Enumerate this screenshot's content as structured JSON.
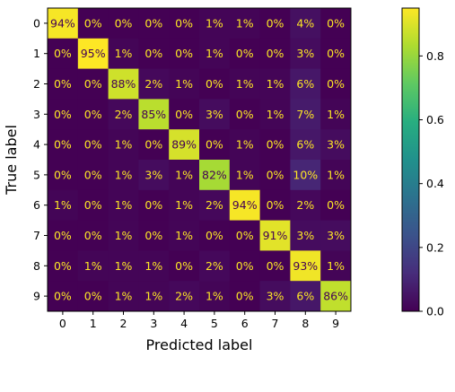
{
  "chart_data": {
    "type": "heatmap",
    "title": "",
    "xlabel": "Predicted label",
    "ylabel": "True label",
    "x_categories": [
      "0",
      "1",
      "2",
      "3",
      "4",
      "5",
      "6",
      "7",
      "8",
      "9"
    ],
    "y_categories": [
      "0",
      "1",
      "2",
      "3",
      "4",
      "5",
      "6",
      "7",
      "8",
      "9"
    ],
    "values": [
      [
        0.94,
        0.0,
        0.0,
        0.0,
        0.0,
        0.01,
        0.01,
        0.0,
        0.04,
        0.0
      ],
      [
        0.0,
        0.95,
        0.01,
        0.0,
        0.0,
        0.01,
        0.0,
        0.0,
        0.03,
        0.0
      ],
      [
        0.0,
        0.0,
        0.88,
        0.02,
        0.01,
        0.0,
        0.01,
        0.01,
        0.06,
        0.0
      ],
      [
        0.0,
        0.0,
        0.02,
        0.85,
        0.0,
        0.03,
        0.0,
        0.01,
        0.07,
        0.01
      ],
      [
        0.0,
        0.0,
        0.01,
        0.0,
        0.89,
        0.0,
        0.01,
        0.0,
        0.06,
        0.03
      ],
      [
        0.0,
        0.0,
        0.01,
        0.03,
        0.01,
        0.82,
        0.01,
        0.0,
        0.1,
        0.01
      ],
      [
        0.01,
        0.0,
        0.01,
        0.0,
        0.01,
        0.02,
        0.94,
        0.0,
        0.02,
        0.0
      ],
      [
        0.0,
        0.0,
        0.01,
        0.0,
        0.01,
        0.0,
        0.0,
        0.91,
        0.03,
        0.03
      ],
      [
        0.0,
        0.01,
        0.01,
        0.01,
        0.0,
        0.02,
        0.0,
        0.0,
        0.93,
        0.01
      ],
      [
        0.0,
        0.0,
        0.01,
        0.01,
        0.02,
        0.01,
        0.0,
        0.03,
        0.06,
        0.86
      ]
    ],
    "cell_labels": [
      [
        "94%",
        "0%",
        "0%",
        "0%",
        "0%",
        "1%",
        "1%",
        "0%",
        "4%",
        "0%"
      ],
      [
        "0%",
        "95%",
        "1%",
        "0%",
        "0%",
        "1%",
        "0%",
        "0%",
        "3%",
        "0%"
      ],
      [
        "0%",
        "0%",
        "88%",
        "2%",
        "1%",
        "0%",
        "1%",
        "1%",
        "6%",
        "0%"
      ],
      [
        "0%",
        "0%",
        "2%",
        "85%",
        "0%",
        "3%",
        "0%",
        "1%",
        "7%",
        "1%"
      ],
      [
        "0%",
        "0%",
        "1%",
        "0%",
        "89%",
        "0%",
        "1%",
        "0%",
        "6%",
        "3%"
      ],
      [
        "0%",
        "0%",
        "1%",
        "3%",
        "1%",
        "82%",
        "1%",
        "0%",
        "10%",
        "1%"
      ],
      [
        "1%",
        "0%",
        "1%",
        "0%",
        "1%",
        "2%",
        "94%",
        "0%",
        "2%",
        "0%"
      ],
      [
        "0%",
        "0%",
        "1%",
        "0%",
        "1%",
        "0%",
        "0%",
        "91%",
        "3%",
        "3%"
      ],
      [
        "0%",
        "1%",
        "1%",
        "1%",
        "0%",
        "2%",
        "0%",
        "0%",
        "93%",
        "1%"
      ],
      [
        "0%",
        "0%",
        "1%",
        "1%",
        "2%",
        "1%",
        "0%",
        "3%",
        "6%",
        "86%"
      ]
    ],
    "colormap": "viridis",
    "colorbar": {
      "range": [
        0.0,
        0.95
      ],
      "ticks": [
        "0.0",
        "0.2",
        "0.4",
        "0.6",
        "0.8"
      ],
      "tick_values": [
        0.0,
        0.2,
        0.4,
        0.6,
        0.8
      ]
    },
    "text_colors": {
      "light_cell": "#440154",
      "dark_cell": "#fde725"
    }
  }
}
